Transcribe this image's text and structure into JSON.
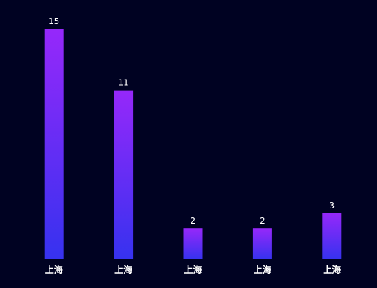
{
  "chart_data": {
    "type": "bar",
    "categories": [
      "上海",
      "上海",
      "上海",
      "上海",
      "上海"
    ],
    "values": [
      15,
      11,
      2,
      2,
      3
    ],
    "ylim": [
      0,
      15
    ],
    "grid": false,
    "colors": {
      "background": "#000222",
      "bar_top": "#9628fa",
      "bar_bottom": "#3632ef",
      "text": "#ffffff"
    }
  }
}
